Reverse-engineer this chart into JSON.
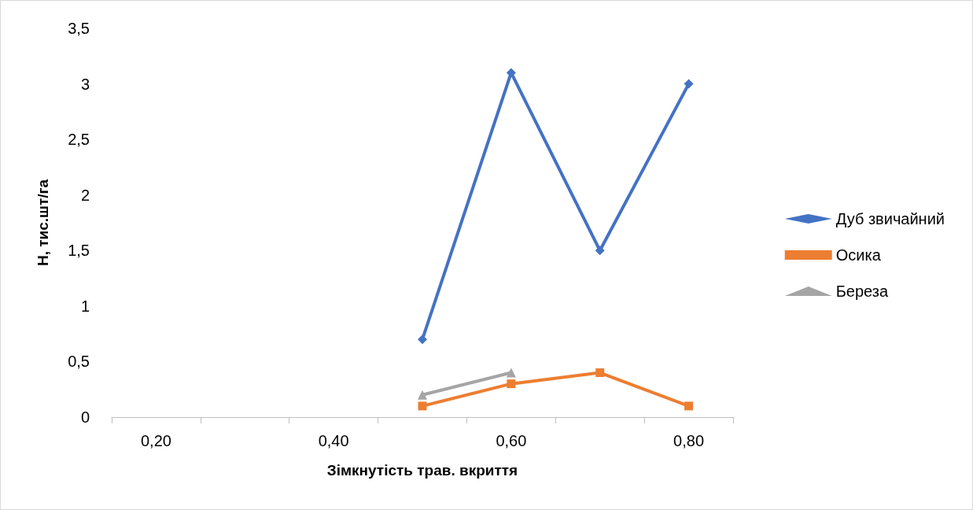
{
  "chart_data": {
    "type": "line",
    "xlabel": "Зімкнутість трав. вкриття",
    "ylabel": "Н, тис.шт/га",
    "categories": [
      "0,20",
      null,
      "0,40",
      null,
      "0,60",
      null,
      "0,80"
    ],
    "series": [
      {
        "name": "Дуб звичайний",
        "color": "#4472c4",
        "marker": "diamond",
        "values": [
          null,
          null,
          null,
          0.7,
          3.1,
          1.5,
          3.0
        ]
      },
      {
        "name": "Осика",
        "color": "#ed7d31",
        "marker": "square",
        "values": [
          null,
          null,
          null,
          0.1,
          0.3,
          0.4,
          0.1
        ]
      },
      {
        "name": "Береза",
        "color": "#a5a5a5",
        "marker": "triangle",
        "values": [
          null,
          null,
          null,
          0.2,
          0.4,
          null,
          null
        ]
      }
    ],
    "ylim": [
      0,
      3.5
    ],
    "yticks": [
      0,
      {
        "value": 0.5,
        "label": "0,5"
      },
      1,
      {
        "value": 1.5,
        "label": "1,5"
      },
      2,
      {
        "value": 2.5,
        "label": "2,5"
      },
      3,
      {
        "value": 3.5,
        "label": "3,5"
      }
    ],
    "grid": false,
    "legend": "right",
    "line_style": "solid"
  }
}
